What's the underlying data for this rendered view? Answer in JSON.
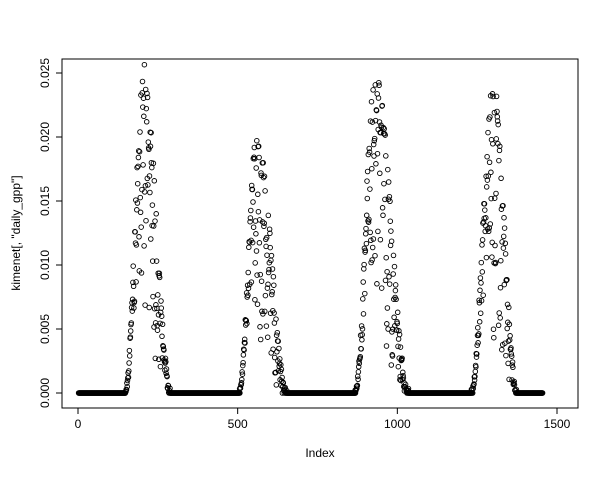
{
  "chart_data": {
    "type": "scatter",
    "title": "",
    "xlabel": "Index",
    "ylabel": "kimenet[, \"daily_gpp\"]",
    "xlim": [
      0,
      1500
    ],
    "ylim": [
      0,
      0.025
    ],
    "x_ticks": [
      0,
      500,
      1000,
      1500
    ],
    "x_tick_labels": [
      "0",
      "500",
      "1000",
      "1500"
    ],
    "y_ticks": [
      0,
      0.005,
      0.01,
      0.015,
      0.02,
      0.025
    ],
    "y_tick_labels": [
      "0.000",
      "0.005",
      "0.010",
      "0.015",
      "0.020",
      "0.025"
    ],
    "grid": false,
    "legend": null,
    "plot_style": "r-base-open-circles",
    "marker": {
      "shape": "open-circle",
      "radius_px": 2.3,
      "color": "#000000"
    },
    "series": [
      {
        "name": "daily_gpp",
        "n_points": 1462,
        "description": "Daily GPP versus day index over about four years: values pinned at 0 during dormant seasons, with noisy bell-shaped peaks each growing season",
        "flat_zero_segments": [
          [
            2,
            148
          ],
          [
            290,
            505
          ],
          [
            655,
            868
          ],
          [
            1035,
            1232
          ],
          [
            1375,
            1455
          ]
        ],
        "peaks": [
          {
            "x_start": 148,
            "x_peak": 207,
            "x_end": 290,
            "y_max": 0.0255
          },
          {
            "x_start": 505,
            "x_peak": 560,
            "x_end": 655,
            "y_max": 0.0205
          },
          {
            "x_start": 868,
            "x_peak": 930,
            "x_end": 1035,
            "y_max": 0.0255
          },
          {
            "x_start": 1232,
            "x_peak": 1300,
            "x_end": 1375,
            "y_max": 0.0248
          }
        ],
        "seed": 42
      }
    ]
  }
}
